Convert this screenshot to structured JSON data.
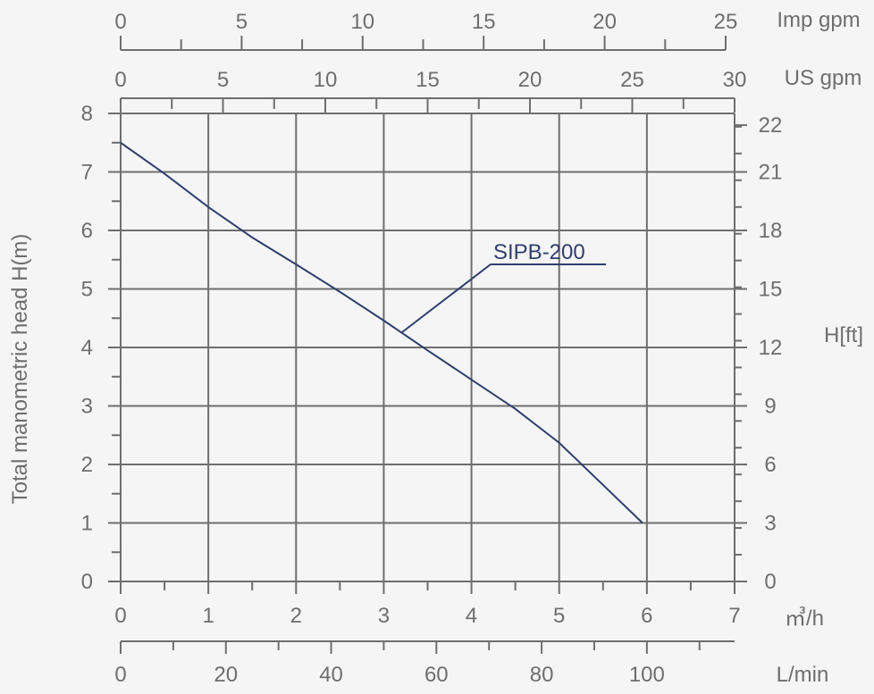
{
  "chart_data": {
    "type": "line",
    "grid": true,
    "series": [
      {
        "name": "SIPB-200",
        "x": [
          0,
          0.5,
          1,
          1.5,
          2,
          2.5,
          3,
          3.5,
          4,
          4.5,
          5,
          5.5,
          5.95
        ],
        "y": [
          7.5,
          6.97,
          6.4,
          5.88,
          5.42,
          4.95,
          4.46,
          3.95,
          3.45,
          2.95,
          2.37,
          1.65,
          1.0
        ]
      }
    ],
    "axes": {
      "x_primary": {
        "unit": "㎥/h",
        "range": [
          0,
          7
        ],
        "ticks": [
          "0",
          "1",
          "2",
          "3",
          "4",
          "5",
          "6",
          "7"
        ]
      },
      "x_lmin": {
        "unit": "L/min",
        "range": [
          0,
          116.67
        ],
        "ticks": [
          "0",
          "20",
          "40",
          "60",
          "80",
          "100"
        ]
      },
      "x_usgpm": {
        "unit": "US gpm",
        "range": [
          0,
          30
        ],
        "ticks": [
          "0",
          "5",
          "10",
          "15",
          "20",
          "25",
          "30"
        ]
      },
      "x_impgpm": {
        "unit": "Imp gpm",
        "range": [
          0,
          25
        ],
        "ticks": [
          "0",
          "5",
          "10",
          "15",
          "20",
          "25"
        ]
      },
      "y_primary": {
        "label": "Total manometric head H(m)",
        "range": [
          0,
          8
        ],
        "ticks": [
          "0",
          "1",
          "2",
          "3",
          "4",
          "5",
          "6",
          "7",
          "8"
        ]
      },
      "y_ft": {
        "label": "H[ft]",
        "ticks": [
          {
            "label": "0",
            "m": 0
          },
          {
            "label": "3",
            "m": 1
          },
          {
            "label": "6",
            "m": 2
          },
          {
            "label": "9",
            "m": 3
          },
          {
            "label": "12",
            "m": 4
          },
          {
            "label": "15",
            "m": 5
          },
          {
            "label": "18",
            "m": 6
          },
          {
            "label": "21",
            "m": 7
          },
          {
            "label": "22",
            "m": 7.8
          }
        ]
      }
    },
    "annotation": {
      "text": "SIPB-200",
      "points_to": {
        "x": 3.2,
        "y": 4.25
      }
    }
  }
}
